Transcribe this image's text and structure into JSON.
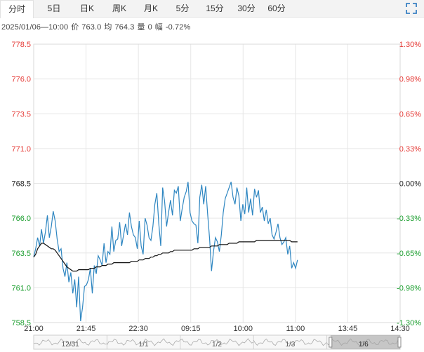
{
  "tabs": [
    {
      "label": "分时",
      "active": true
    },
    {
      "label": "5日",
      "active": false
    },
    {
      "label": "日K",
      "active": false
    },
    {
      "label": "周K",
      "active": false
    },
    {
      "label": "月K",
      "active": false
    },
    {
      "label": "5分",
      "active": false
    },
    {
      "label": "15分",
      "active": false
    },
    {
      "label": "30分",
      "active": false
    },
    {
      "label": "60分",
      "active": false
    }
  ],
  "fullscreen_icon": "fullscreen-icon",
  "info": {
    "datetime": "2025/01/06—10:00",
    "price_label": "价",
    "price": "763.0",
    "avg_label": "均",
    "avg": "764.3",
    "vol_label": "量",
    "vol": "0",
    "change_label": "幅",
    "change": "-0.72%"
  },
  "colors": {
    "up": "#e53935",
    "down": "#1c9e2f",
    "neutral": "#222222",
    "price_line": "#2e86c1",
    "avg_line": "#111111",
    "grid": "#e6e6e6"
  },
  "chart_data": {
    "type": "line",
    "title": "",
    "ylim": [
      758.5,
      778.5
    ],
    "y_ticks": [
      "778.5",
      "776.0",
      "773.5",
      "771.0",
      "768.5",
      "766.0",
      "763.5",
      "761.0",
      "758.5"
    ],
    "pct_ticks": [
      "1.30%",
      "0.98%",
      "0.65%",
      "0.33%",
      "0.00%",
      "-0.33%",
      "-0.65%",
      "-0.98%",
      "-1.30%"
    ],
    "x_ticks": [
      "21:00",
      "21:45",
      "22:30",
      "09:15",
      "10:00",
      "11:00",
      "13:45",
      "14:30"
    ],
    "prev_close": 768.5,
    "series": [
      {
        "name": "price",
        "values": [
          763.2,
          763.8,
          764.6,
          764.0,
          765.2,
          764.2,
          765.0,
          766.2,
          764.6,
          765.4,
          766.5,
          765.8,
          764.5,
          763.6,
          763.8,
          762.4,
          761.8,
          762.8,
          761.4,
          762.1,
          760.6,
          761.6,
          759.6,
          761.8,
          758.6,
          759.6,
          761.1,
          761.2,
          761.6,
          762.4,
          760.6,
          762.6,
          762.0,
          763.3,
          763.0,
          762.6,
          764.2,
          762.8,
          763.6,
          763.4,
          765.4,
          763.6,
          764.4,
          764.5,
          765.7,
          764.0,
          764.8,
          765.6,
          764.8,
          766.4,
          765.4,
          764.8,
          764.6,
          763.8,
          765.8,
          764.0,
          763.4,
          766.0,
          765.5,
          764.6,
          764.4,
          765.4,
          767.0,
          767.8,
          765.6,
          764.0,
          768.2,
          767.2,
          765.4,
          766.4,
          767.3,
          766.2,
          768.0,
          767.8,
          768.3,
          765.8,
          766.7,
          767.5,
          767.9,
          768.6,
          766.4,
          765.8,
          765.6,
          765.5,
          764.2,
          767.5,
          768.4,
          767.0,
          768.3,
          766.3,
          764.5,
          762.2,
          763.6,
          764.6,
          764.3,
          763.6,
          764.8,
          766.4,
          767.4,
          767.8,
          768.2,
          768.6,
          767.5,
          767.0,
          768.2,
          767.6,
          765.8,
          767.0,
          766.3,
          768.2,
          766.4,
          767.4,
          766.2,
          768.1,
          767.5,
          768.0,
          766.4,
          766.8,
          765.8,
          766.6,
          765.6,
          766.0,
          764.8,
          764.5,
          765.0,
          765.6,
          764.6,
          764.1,
          764.3,
          764.6,
          763.4,
          764.0,
          762.4,
          762.8,
          762.4,
          763.0
        ]
      },
      {
        "name": "avg",
        "values": [
          763.2,
          763.4,
          763.8,
          764.0,
          764.2,
          764.2,
          764.1,
          764.0,
          763.9,
          763.8,
          763.8,
          763.7,
          763.5,
          763.3,
          763.1,
          762.9,
          762.7,
          762.5,
          762.4,
          762.3,
          762.2,
          762.2,
          762.2,
          762.3,
          762.3,
          762.3,
          762.3,
          762.3,
          762.3,
          762.4,
          762.4,
          762.4,
          762.5,
          762.5,
          762.5,
          762.6,
          762.6,
          762.6,
          762.7,
          762.7,
          762.7,
          762.8,
          762.8,
          762.8,
          762.8,
          762.8,
          762.8,
          762.8,
          762.8,
          762.8,
          762.9,
          762.9,
          762.9,
          762.9,
          763.0,
          763.0,
          763.0,
          763.1,
          763.1,
          763.1,
          763.2,
          763.2,
          763.3,
          763.3,
          763.4,
          763.4,
          763.5,
          763.5,
          763.5,
          763.5,
          763.6,
          763.6,
          763.7,
          763.7,
          763.7,
          763.7,
          763.7,
          763.7,
          763.7,
          763.7,
          763.7,
          763.7,
          763.8,
          763.8,
          763.8,
          763.9,
          763.9,
          763.9,
          763.9,
          763.9,
          763.9,
          764.0,
          764.0,
          764.0,
          764.0,
          764.1,
          764.1,
          764.1,
          764.1,
          764.1,
          764.2,
          764.2,
          764.2,
          764.2,
          764.2,
          764.3,
          764.3,
          764.3,
          764.3,
          764.3,
          764.3,
          764.3,
          764.3,
          764.3,
          764.4,
          764.4,
          764.4,
          764.4,
          764.4,
          764.4,
          764.4,
          764.4,
          764.4,
          764.4,
          764.4,
          764.4,
          764.4,
          764.4,
          764.4,
          764.4,
          764.4,
          764.4,
          764.3,
          764.3,
          764.3,
          764.3
        ]
      }
    ]
  },
  "navigator": {
    "dates": [
      "12/31",
      "1/1",
      "1/2",
      "1/3",
      "1/6"
    ],
    "window_start": 0.81,
    "window_end": 1.0
  }
}
